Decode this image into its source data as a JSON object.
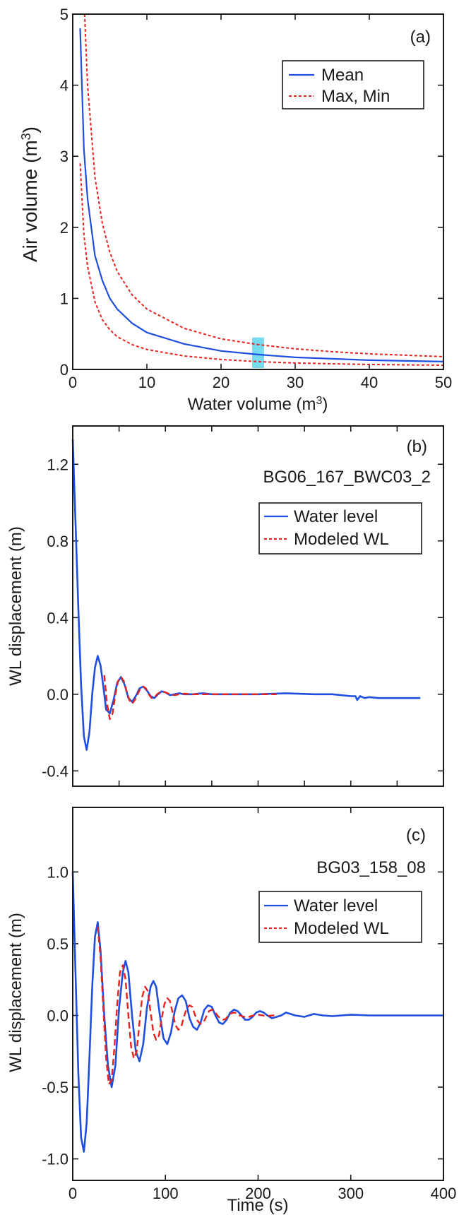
{
  "colors": {
    "mean": "#1f4fe0",
    "maxmin": "#e8231e",
    "water_level": "#1f4fe0",
    "modeled": "#e8231e",
    "highlight": "#5fd3ec"
  },
  "chart_data": [
    {
      "type": "line",
      "panel_label": "(a)",
      "xlabel": "Water volume (m",
      "xlabel_sup": "3",
      "xlabel_close": ")",
      "ylabel": "Air volume (m",
      "ylabel_sup": "3",
      "ylabel_close": ")",
      "xlim": [
        0,
        50
      ],
      "ylim": [
        0,
        5
      ],
      "xticks": [
        0,
        10,
        20,
        30,
        40,
        50
      ],
      "xtick_labels": [
        "0",
        "10",
        "20",
        "30",
        "40",
        "50"
      ],
      "yticks": [
        0,
        1,
        2,
        3,
        4,
        5
      ],
      "ytick_labels": [
        "0",
        "1",
        "2",
        "3",
        "4",
        "5"
      ],
      "legend": [
        "Mean",
        "Max, Min"
      ],
      "legend_position": "top-right",
      "highlight_x_range": [
        24.2,
        25.8
      ],
      "series": [
        {
          "name": "Mean",
          "x": [
            1.0,
            1.5,
            2,
            3,
            4,
            5,
            6,
            8,
            10,
            15,
            20,
            25,
            30,
            35,
            40,
            45,
            50
          ],
          "y": [
            4.8,
            3.1,
            2.4,
            1.6,
            1.25,
            1.0,
            0.85,
            0.65,
            0.52,
            0.36,
            0.26,
            0.21,
            0.17,
            0.15,
            0.13,
            0.12,
            0.11
          ]
        },
        {
          "name": "Max",
          "x": [
            1.6,
            2,
            3,
            4,
            5,
            6,
            8,
            10,
            15,
            20,
            25,
            30,
            35,
            40,
            45,
            50
          ],
          "y": [
            5.0,
            4.0,
            2.7,
            2.05,
            1.65,
            1.38,
            1.05,
            0.85,
            0.58,
            0.43,
            0.35,
            0.29,
            0.25,
            0.22,
            0.2,
            0.18
          ]
        },
        {
          "name": "Min",
          "x": [
            1.0,
            1.5,
            2,
            3,
            4,
            5,
            6,
            8,
            10,
            15,
            20,
            25,
            30,
            35,
            40,
            45,
            50
          ],
          "y": [
            2.9,
            1.9,
            1.45,
            0.95,
            0.7,
            0.56,
            0.46,
            0.35,
            0.28,
            0.19,
            0.14,
            0.11,
            0.09,
            0.08,
            0.07,
            0.065,
            0.06
          ]
        }
      ]
    },
    {
      "type": "line",
      "panel_label": "(b)",
      "well_id": "BG06_167_BWC03_2",
      "xlabel": "",
      "ylabel": "WL displacement (m)",
      "xlim": [
        0,
        400
      ],
      "ylim": [
        -0.48,
        1.4
      ],
      "yticks": [
        -0.4,
        0.0,
        0.4,
        0.8,
        1.2
      ],
      "ytick_labels": [
        "-0.4",
        "0.0",
        "0.4",
        "0.8",
        "1.2"
      ],
      "xticks": [
        0,
        50,
        100,
        150,
        200,
        250,
        300,
        350,
        400
      ],
      "legend": [
        "Water level",
        "Modeled WL"
      ],
      "legend_position": "top-right",
      "series": [
        {
          "name": "Water level",
          "x": [
            0,
            3,
            6,
            9,
            12,
            15,
            18,
            21,
            24,
            27,
            30,
            33,
            36,
            40,
            44,
            48,
            52,
            56,
            60,
            64,
            68,
            72,
            76,
            80,
            84,
            88,
            92,
            96,
            100,
            105,
            110,
            115,
            120,
            130,
            140,
            150,
            170,
            200,
            230,
            260,
            280,
            300,
            305,
            307,
            310,
            315,
            320,
            330,
            350,
            375
          ],
          "y": [
            1.33,
            0.9,
            0.45,
            0.05,
            -0.22,
            -0.29,
            -0.2,
            0.0,
            0.14,
            0.2,
            0.15,
            0.04,
            -0.08,
            -0.1,
            -0.03,
            0.06,
            0.09,
            0.05,
            -0.02,
            -0.04,
            -0.01,
            0.03,
            0.04,
            0.02,
            -0.01,
            -0.02,
            0.0,
            0.015,
            0.01,
            -0.005,
            0.0,
            0.005,
            0.0,
            0.0,
            0.005,
            0.0,
            0.0,
            0.0,
            0.005,
            0.0,
            0.0,
            -0.01,
            -0.01,
            -0.03,
            -0.01,
            -0.02,
            -0.015,
            -0.02,
            -0.02,
            -0.02
          ]
        },
        {
          "name": "Modeled WL",
          "x": [
            34,
            37,
            40,
            43,
            46,
            49,
            52,
            55,
            58,
            61,
            64,
            67,
            70,
            73,
            76,
            79,
            82,
            85,
            88,
            91,
            94,
            97,
            100,
            105,
            110,
            115,
            120,
            130,
            140,
            150,
            170,
            200,
            220
          ],
          "y": [
            0.1,
            -0.05,
            -0.13,
            -0.1,
            0.0,
            0.07,
            0.09,
            0.07,
            0.02,
            -0.03,
            -0.05,
            -0.03,
            0.0,
            0.03,
            0.04,
            0.03,
            0.0,
            -0.02,
            -0.02,
            0.0,
            0.01,
            0.015,
            0.01,
            0.0,
            -0.005,
            0.0,
            0.003,
            0.0,
            0.0,
            0.0,
            0.0,
            0.0,
            0.0
          ]
        }
      ]
    },
    {
      "type": "line",
      "panel_label": "(c)",
      "well_id": "BG03_158_08",
      "xlabel": "Time (s)",
      "ylabel": "WL displacement (m)",
      "xlim": [
        0,
        400
      ],
      "ylim": [
        -1.15,
        1.45
      ],
      "yticks": [
        -1.0,
        -0.5,
        0.0,
        0.5,
        1.0
      ],
      "ytick_labels": [
        "-1.0",
        "-0.5",
        "0.0",
        "0.5",
        "1.0"
      ],
      "xticks": [
        0,
        100,
        200,
        300,
        400
      ],
      "xtick_labels": [
        "0",
        "100",
        "200",
        "300",
        "400"
      ],
      "legend": [
        "Water level",
        "Modeled WL"
      ],
      "legend_position": "top-right",
      "series": [
        {
          "name": "Water level",
          "x": [
            0,
            3,
            6,
            9,
            12,
            15,
            18,
            21,
            24,
            27,
            30,
            34,
            38,
            42,
            46,
            50,
            54,
            57,
            60,
            64,
            68,
            72,
            76,
            80,
            84,
            87,
            90,
            94,
            98,
            102,
            106,
            110,
            114,
            118,
            122,
            126,
            130,
            134,
            138,
            142,
            146,
            150,
            154,
            158,
            162,
            166,
            170,
            174,
            178,
            182,
            186,
            190,
            194,
            198,
            202,
            206,
            210,
            215,
            220,
            225,
            230,
            240,
            250,
            260,
            270,
            280,
            300,
            320,
            340,
            360,
            380,
            400
          ],
          "y": [
            1.0,
            0.3,
            -0.4,
            -0.85,
            -0.95,
            -0.75,
            -0.3,
            0.2,
            0.55,
            0.65,
            0.45,
            0.0,
            -0.35,
            -0.5,
            -0.35,
            0.05,
            0.3,
            0.38,
            0.3,
            0.0,
            -0.25,
            -0.32,
            -0.2,
            0.05,
            0.2,
            0.24,
            0.2,
            0.0,
            -0.16,
            -0.2,
            -0.12,
            0.03,
            0.12,
            0.14,
            0.1,
            -0.02,
            -0.08,
            -0.1,
            -0.05,
            0.04,
            0.07,
            0.06,
            0.0,
            -0.05,
            -0.06,
            -0.03,
            0.02,
            0.04,
            0.03,
            0.0,
            -0.03,
            -0.03,
            -0.01,
            0.02,
            0.03,
            0.02,
            0.0,
            -0.02,
            -0.01,
            0.0,
            0.02,
            0.0,
            -0.01,
            0.01,
            0.0,
            -0.005,
            0.005,
            0.0,
            0.0,
            0.0,
            0.0,
            0.0
          ]
        },
        {
          "name": "Modeled WL",
          "x": [
            27,
            30,
            33,
            36,
            39,
            42,
            45,
            48,
            51,
            54,
            57,
            60,
            63,
            66,
            69,
            72,
            75,
            78,
            81,
            84,
            87,
            90,
            93,
            96,
            99,
            102,
            105,
            108,
            111,
            114,
            117,
            120,
            123,
            126,
            129,
            132,
            135,
            138,
            141,
            144,
            147,
            150,
            153,
            156,
            159,
            162,
            165,
            168,
            171,
            174,
            177,
            180,
            185,
            190,
            195,
            200,
            205,
            210,
            215,
            220
          ],
          "y": [
            0.62,
            0.4,
            0.05,
            -0.3,
            -0.48,
            -0.45,
            -0.22,
            0.08,
            0.3,
            0.35,
            0.25,
            0.0,
            -0.22,
            -0.3,
            -0.25,
            -0.05,
            0.13,
            0.2,
            0.17,
            0.02,
            -0.12,
            -0.17,
            -0.14,
            -0.02,
            0.08,
            0.12,
            0.1,
            0.01,
            -0.07,
            -0.1,
            -0.08,
            -0.01,
            0.05,
            0.07,
            0.06,
            0.0,
            -0.04,
            -0.06,
            -0.05,
            -0.01,
            0.03,
            0.04,
            0.03,
            0.0,
            -0.02,
            -0.03,
            -0.025,
            0.0,
            0.015,
            0.02,
            0.015,
            0.0,
            -0.01,
            -0.01,
            0.0,
            0.005,
            0.0,
            -0.005,
            0.0,
            0.0
          ]
        }
      ]
    }
  ]
}
